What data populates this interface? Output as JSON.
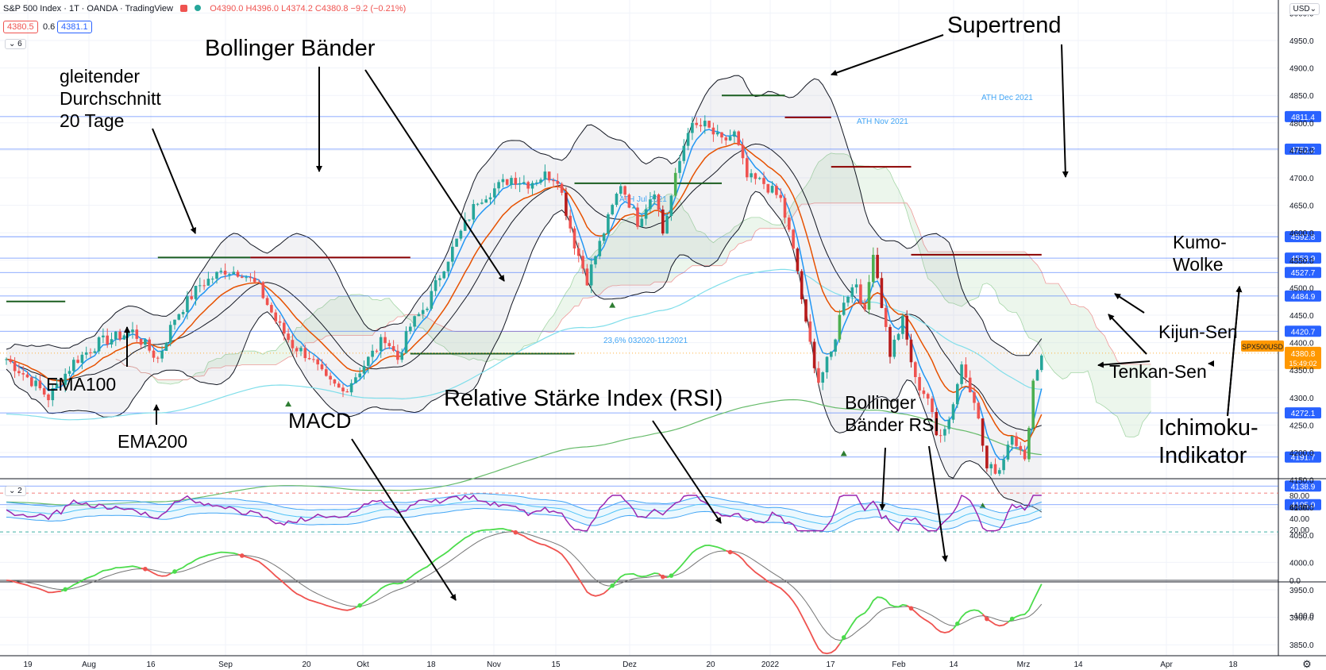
{
  "header": {
    "symbol_line": "S&P 500 Index · 1T · OANDA · TradingView",
    "ohlc": "O4390.0 H4396.0 L4374.2 C4380.8 −9.2 (−0.21%)",
    "bid": "4380.5",
    "spread": "0.6",
    "ask": "4381.1",
    "indicator_count": "6",
    "rsi_pane_count": "2",
    "currency": "USD"
  },
  "annotations": {
    "bollinger": "Bollinger Bänder",
    "sma20_l1": "gleitender",
    "sma20_l2": "Durchschnitt",
    "sma20_l3": "20 Tage",
    "supertrend": "Supertrend",
    "kumo_l1": "Kumo-",
    "kumo_l2": "Wolke",
    "kijun": "Kijun-Sen",
    "tenkan": "Tenkan-Sen",
    "ichimoku_l1": "Ichimoku-",
    "ichimoku_l2": "Indikator",
    "ema100": "EMA100",
    "ema200": "EMA200",
    "macd": "MACD",
    "rsi": "Relative Stärke Index (RSI)",
    "bbrsi_l1": "Bollinger",
    "bbrsi_l2": "Bänder RSI"
  },
  "colors": {
    "up": "#26a69a",
    "up_bright": "#4caf50",
    "down": "#ef5350",
    "down_dark": "#b71c1c",
    "orange": "#ff9800",
    "hline": "#2962ff",
    "sma": "#2196f3",
    "kijun": "#e65100",
    "ema100": "#80deea",
    "ema200": "#66bb6a",
    "supertrend_up": "#1b5e20",
    "supertrend_down": "#8b0000",
    "rsi": "#9c27b0",
    "rsi_band": "#42a5f5",
    "macd_up": "#4cdc4c",
    "macd_down": "#ef5350",
    "signal": "#757575"
  },
  "chart_data": [
    {
      "type": "candlestick",
      "pane": "price",
      "y_ticks": [
        5000,
        4950,
        4900,
        4850,
        4800,
        4750,
        4700,
        4650,
        4600,
        4550,
        4500,
        4450,
        4400,
        4350,
        4300,
        4250,
        4200,
        4150,
        4100,
        4050,
        4000,
        3950,
        3900,
        3850
      ],
      "x_tick_labels": [
        "19",
        "Aug",
        "16",
        "Sep",
        "20",
        "Okt",
        "18",
        "Nov",
        "15",
        "Dez",
        "20",
        "2022",
        "17",
        "Feb",
        "14",
        "Mrz",
        "14",
        "Apr",
        "18"
      ],
      "horizontal_levels": [
        {
          "value": 4811.4,
          "label": "4811.4"
        },
        {
          "value": 4752.2,
          "label": "4752.2"
        },
        {
          "value": 4592.8,
          "label": "4592.8"
        },
        {
          "value": 4553.9,
          "label": "4553.9"
        },
        {
          "value": 4527.7,
          "label": "4527.7"
        },
        {
          "value": 4484.9,
          "label": "4484.9"
        },
        {
          "value": 4420.7,
          "label": "4420.7"
        },
        {
          "value": 4272.1,
          "label": "4272.1"
        },
        {
          "value": 4191.7,
          "label": "4191.7"
        },
        {
          "value": 4138.9,
          "label": "4138.9"
        },
        {
          "value": 4105.0,
          "label": "4105.0"
        }
      ],
      "current_price": {
        "label": "SPX500USD",
        "value": "4380.8",
        "countdown": "15:49:02"
      },
      "level_texts": [
        "ATH Dec 2021",
        "ATH Nov 2021",
        "ATH Jul 2021",
        "23,6% 032020-1122021"
      ]
    },
    {
      "type": "line",
      "pane": "rsi",
      "name": "",
      "y_ticks": [
        80.0,
        60.0,
        40.0,
        20.0
      ],
      "y_tick_labels": [
        "80.00",
        "60.00",
        "40.00",
        "20.00"
      ],
      "overbought": 84,
      "oversold": 16
    },
    {
      "type": "line",
      "pane": "macd",
      "name": "",
      "y_ticks": [
        0.0,
        -100.0
      ],
      "y_tick_labels": [
        "0.0",
        "−100.0"
      ]
    }
  ]
}
